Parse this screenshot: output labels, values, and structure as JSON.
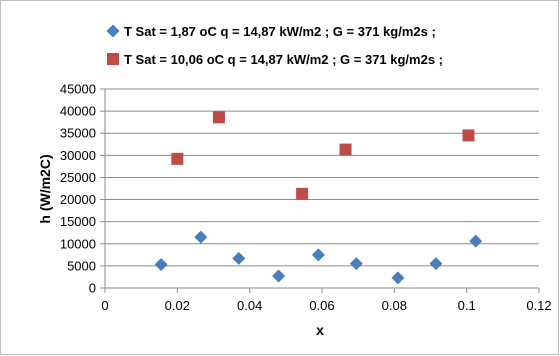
{
  "chart_data": {
    "type": "scatter",
    "title": "",
    "xlabel": "x",
    "ylabel": "h (W/m2C)",
    "xlim": [
      0,
      0.12
    ],
    "ylim": [
      0,
      45000
    ],
    "x_ticks": [
      0,
      0.02,
      0.04,
      0.06,
      0.08,
      0.1,
      0.12
    ],
    "y_ticks": [
      0,
      5000,
      10000,
      15000,
      20000,
      25000,
      30000,
      35000,
      40000,
      45000
    ],
    "grid": "horizontal",
    "legend_position": "top",
    "series": [
      {
        "name": "T Sat = 1,87 oC q = 14,87 kW/m2 ; G = 371 kg/m2s ;",
        "marker": "diamond",
        "color": "#4a7ebb",
        "x": [
          0.0155,
          0.0265,
          0.037,
          0.048,
          0.059,
          0.0695,
          0.081,
          0.0915,
          0.1025
        ],
        "y": [
          5300,
          11500,
          6700,
          2700,
          7500,
          5500,
          2300,
          5500,
          10600
        ]
      },
      {
        "name": "T Sat = 10,06 oC q = 14,87 kW/m2 ; G = 371 kg/m2s ;",
        "marker": "square",
        "color": "#be4b48",
        "x": [
          0.02,
          0.0315,
          0.0545,
          0.0665,
          0.1005
        ],
        "y": [
          29200,
          38600,
          21300,
          31300,
          34500
        ]
      }
    ]
  }
}
